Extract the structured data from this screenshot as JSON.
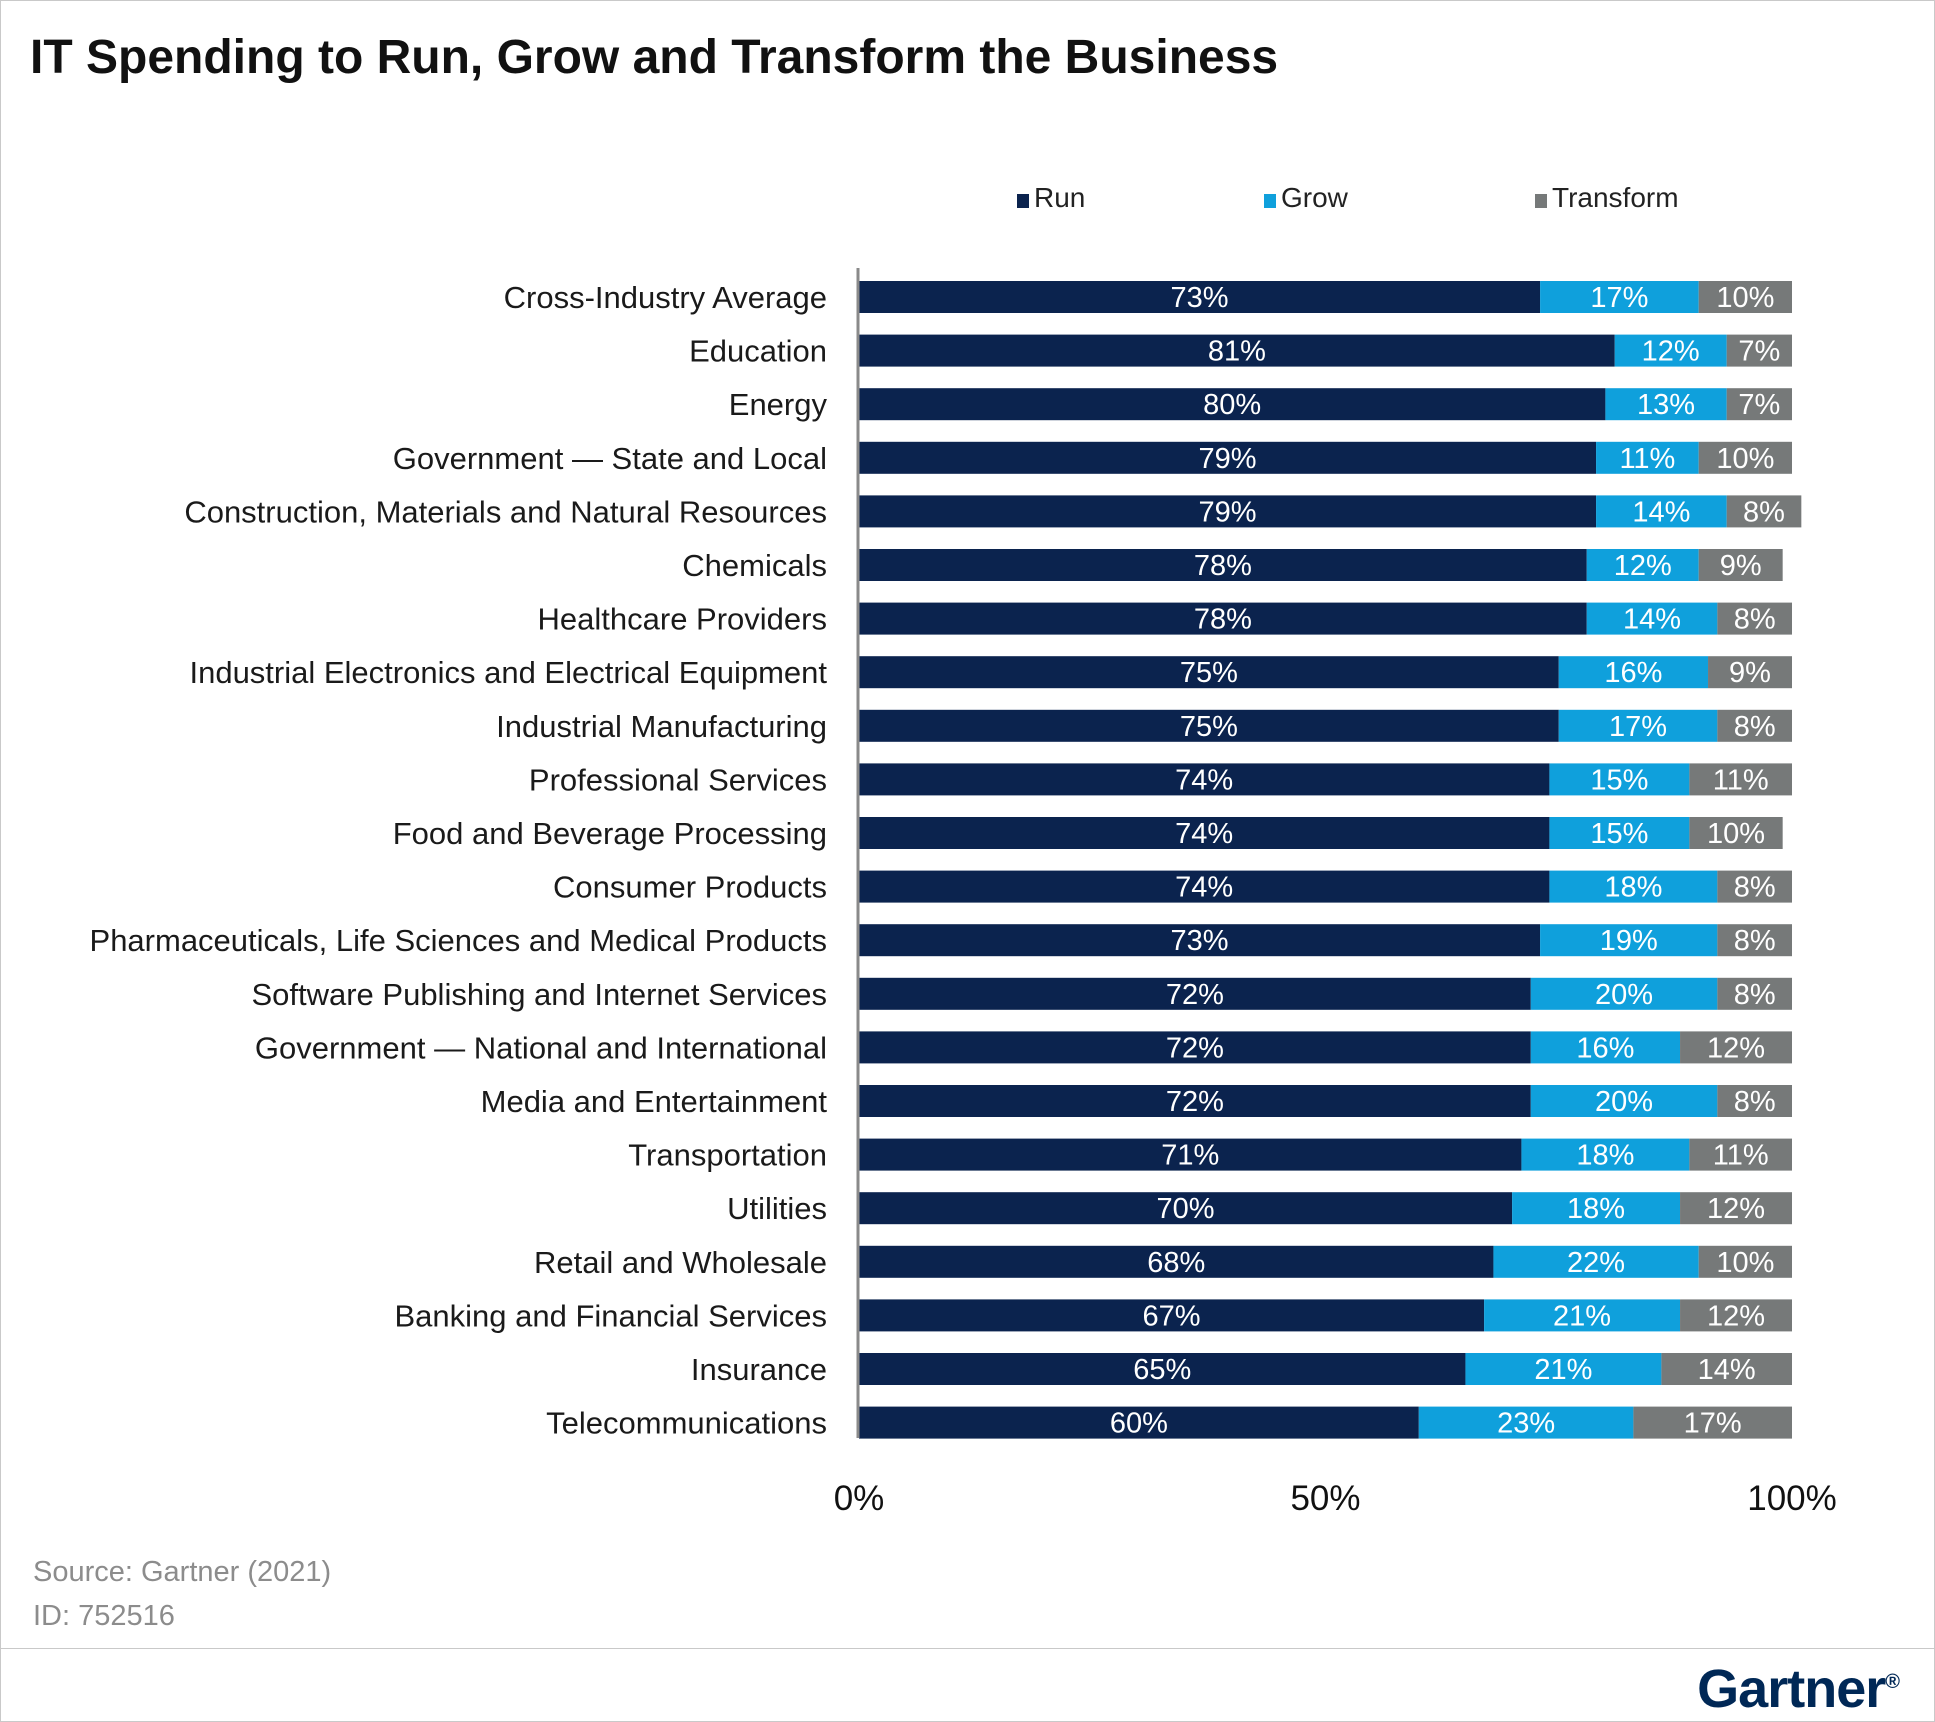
{
  "title": "IT Spending to Run, Grow and Transform the Business",
  "source": "Source: Gartner (2021)",
  "id_text": "ID: 752516",
  "brand": "Gartner",
  "colors": {
    "run": "#0b234e",
    "grow": "#0fa0dc",
    "transform": "#767979"
  },
  "chart_data": {
    "type": "bar",
    "orientation": "horizontal",
    "stacked": true,
    "legend_position": "top",
    "xlim": [
      0,
      100
    ],
    "x_ticks": [
      "0%",
      "50%",
      "100%"
    ],
    "categories": [
      "Cross-Industry Average",
      "Education",
      "Energy",
      "Government  — State and Local",
      "Construction, Materials and Natural Resources",
      "Chemicals",
      "Healthcare Providers",
      "Industrial Electronics and Electrical Equipment",
      "Industrial Manufacturing",
      "Professional Services",
      "Food and Beverage Processing",
      "Consumer Products",
      "Pharmaceuticals, Life Sciences and Medical Products",
      "Software Publishing and Internet Services",
      "Government  — National and International",
      "Media and Entertainment",
      "Transportation",
      "Utilities",
      "Retail and Wholesale",
      "Banking and Financial Services",
      "Insurance",
      "Telecommunications"
    ],
    "series": [
      {
        "name": "Run",
        "values": [
          73,
          81,
          80,
          79,
          79,
          78,
          78,
          75,
          75,
          74,
          74,
          74,
          73,
          72,
          72,
          72,
          71,
          70,
          68,
          67,
          65,
          60
        ]
      },
      {
        "name": "Grow",
        "values": [
          17,
          12,
          13,
          11,
          14,
          12,
          14,
          16,
          17,
          15,
          15,
          18,
          19,
          20,
          16,
          20,
          18,
          18,
          22,
          21,
          21,
          23
        ]
      },
      {
        "name": "Transform",
        "values": [
          10,
          7,
          7,
          10,
          8,
          9,
          8,
          9,
          8,
          11,
          10,
          8,
          8,
          8,
          12,
          8,
          11,
          12,
          10,
          12,
          14,
          17
        ]
      }
    ]
  }
}
